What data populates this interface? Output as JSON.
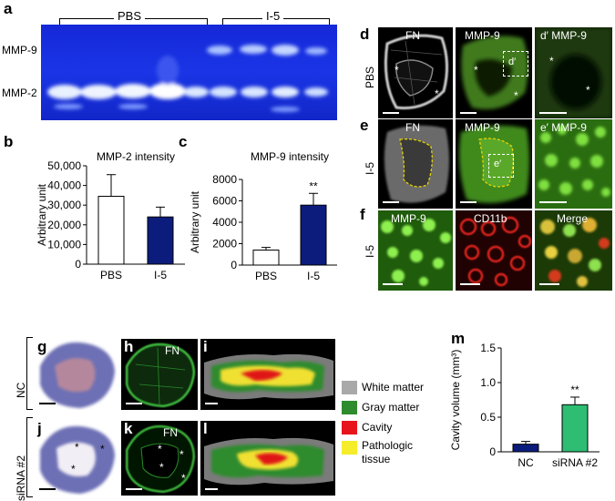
{
  "panels": {
    "a": {
      "letter": "a",
      "group_pbs": "PBS",
      "group_i5": "I-5",
      "band_mmp9": "MMP-9",
      "band_mmp2": "MMP-2"
    },
    "b": {
      "letter": "b"
    },
    "c": {
      "letter": "c"
    },
    "d": {
      "letter": "d",
      "row_label": "PBS",
      "fn": "FN",
      "mmp9": "MMP-9",
      "zoom": "d′ MMP-9",
      "box": "d′"
    },
    "e": {
      "letter": "e",
      "row_label": "I-5",
      "fn": "FN",
      "mmp9": "MMP-9",
      "zoom": "e′ MMP-9",
      "box": "e′"
    },
    "f": {
      "letter": "f",
      "row_label": "I-5",
      "mmp9": "MMP-9",
      "cd11b": "CD11b",
      "merge": "Merge"
    },
    "ghi": {
      "letter_g": "g",
      "letter_h": "h",
      "letter_i": "i",
      "row_label": "NC",
      "fn": "FN"
    },
    "jkl": {
      "letter_j": "j",
      "letter_k": "k",
      "letter_l": "l",
      "row_label": "siRNA #2",
      "fn": "FN"
    },
    "m": {
      "letter": "m"
    },
    "legend": [
      {
        "label": "White matter",
        "color": "#a9a9a9"
      },
      {
        "label": "Gray matter",
        "color": "#2e8b2e"
      },
      {
        "label": "Cavity",
        "color": "#e8141b"
      },
      {
        "label": "Pathologic",
        "color": "#f5ec2a"
      },
      {
        "label": "tissue",
        "color": ""
      }
    ]
  },
  "chart_data": [
    {
      "id": "b",
      "type": "bar",
      "title": "MMP-2 intensity",
      "ylabel": "Arbitrary unit",
      "categories": [
        "PBS",
        "I-5"
      ],
      "values": [
        34500,
        24000
      ],
      "errors": [
        11000,
        5000
      ],
      "ylim": [
        0,
        50000
      ],
      "yticks": [
        "0",
        "10,000",
        "20,000",
        "30,000",
        "40,000",
        "50,000"
      ],
      "colors": [
        "#ffffff",
        "#0b1c7d"
      ],
      "significance": [
        "",
        ""
      ]
    },
    {
      "id": "c",
      "type": "bar",
      "title": "MMP-9 intensity",
      "ylabel": "Arbitrary unit",
      "categories": [
        "PBS",
        "I-5"
      ],
      "values": [
        1400,
        5600
      ],
      "errors": [
        250,
        1100
      ],
      "ylim": [
        0,
        8000
      ],
      "yticks": [
        "0",
        "2000",
        "4000",
        "6000",
        "8000"
      ],
      "colors": [
        "#ffffff",
        "#0b1c7d"
      ],
      "significance": [
        "",
        "**"
      ]
    },
    {
      "id": "m",
      "type": "bar",
      "title": "",
      "ylabel": "Cavity volume (mm³)",
      "categories": [
        "NC",
        "siRNA #2"
      ],
      "values": [
        0.11,
        0.68
      ],
      "errors": [
        0.04,
        0.11
      ],
      "ylim": [
        0,
        1.5
      ],
      "yticks": [
        "0",
        "0.5",
        "1.0",
        "1.5"
      ],
      "colors": [
        "#0b1c7d",
        "#2ebd73"
      ],
      "significance": [
        "",
        "**"
      ]
    }
  ]
}
